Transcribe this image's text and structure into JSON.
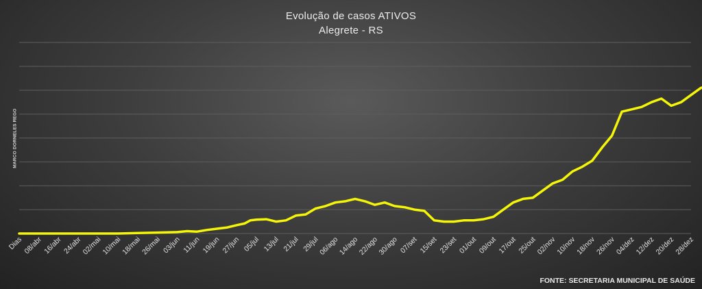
{
  "colors": {
    "line": "#F5F50A",
    "gridline": "#5e5e5e",
    "text": "#e0e0e0"
  },
  "chart_data": {
    "type": "line",
    "title": "Evolução  de casos ATIVOS",
    "subtitle": "Alegrete  - RS",
    "side_label": "MARCO  DORNELES REGO",
    "source": "FONTE: SECRETARIA MUNICIPAL DE SAÚDE",
    "grid": true,
    "legend": "none",
    "ylim": [
      0,
      8
    ],
    "x_categories": [
      "Dias",
      "08/abr",
      "16/abr",
      "24/abr",
      "02/mai",
      "10/mai",
      "18/mai",
      "26/mai",
      "03/jun",
      "11/jun",
      "19/jun",
      "27/jun",
      "05/jul",
      "13/jul",
      "21/jul",
      "29/jul",
      "06/ago",
      "14/ago",
      "22/ago",
      "30/ago",
      "07/set",
      "15/set",
      "23/set",
      "01/out",
      "09/out",
      "17/out",
      "25/out",
      "02/nov",
      "10/nov",
      "18/nov",
      "26/nov",
      "04/dez",
      "12/dez",
      "20/dez",
      "28/dez"
    ],
    "series": [
      {
        "points": [
          [
            0,
            0
          ],
          [
            1,
            0
          ],
          [
            2,
            0
          ],
          [
            3,
            0
          ],
          [
            4,
            0
          ],
          [
            5,
            0
          ],
          [
            6,
            0.02
          ],
          [
            7,
            0.04
          ],
          [
            8,
            0.06
          ],
          [
            8.5,
            0.1
          ],
          [
            9,
            0.08
          ],
          [
            9.5,
            0.15
          ],
          [
            10,
            0.2
          ],
          [
            10.5,
            0.25
          ],
          [
            11,
            0.35
          ],
          [
            11.4,
            0.42
          ],
          [
            11.7,
            0.55
          ],
          [
            12,
            0.58
          ],
          [
            12.5,
            0.6
          ],
          [
            13,
            0.5
          ],
          [
            13.5,
            0.55
          ],
          [
            14,
            0.75
          ],
          [
            14.5,
            0.8
          ],
          [
            15,
            1.05
          ],
          [
            15.5,
            1.15
          ],
          [
            16,
            1.3
          ],
          [
            16.5,
            1.35
          ],
          [
            17,
            1.45
          ],
          [
            17.5,
            1.35
          ],
          [
            18,
            1.2
          ],
          [
            18.5,
            1.3
          ],
          [
            19,
            1.15
          ],
          [
            19.5,
            1.1
          ],
          [
            20,
            1.0
          ],
          [
            20.5,
            0.95
          ],
          [
            21,
            0.55
          ],
          [
            21.5,
            0.5
          ],
          [
            22,
            0.5
          ],
          [
            22.5,
            0.55
          ],
          [
            23,
            0.55
          ],
          [
            23.5,
            0.6
          ],
          [
            24,
            0.7
          ],
          [
            24.5,
            1.0
          ],
          [
            25,
            1.3
          ],
          [
            25.5,
            1.45
          ],
          [
            26,
            1.5
          ],
          [
            26.5,
            1.8
          ],
          [
            27,
            2.1
          ],
          [
            27.5,
            2.25
          ],
          [
            28,
            2.6
          ],
          [
            28.5,
            2.8
          ],
          [
            29,
            3.05
          ],
          [
            29.5,
            3.6
          ],
          [
            30,
            4.1
          ],
          [
            30.5,
            5.1
          ],
          [
            31,
            5.2
          ],
          [
            31.5,
            5.3
          ],
          [
            32,
            5.5
          ],
          [
            32.5,
            5.65
          ],
          [
            33,
            5.35
          ],
          [
            33.5,
            5.5
          ],
          [
            34,
            5.8
          ],
          [
            34.5,
            6.1
          ],
          [
            35,
            6.2
          ]
        ]
      }
    ]
  }
}
